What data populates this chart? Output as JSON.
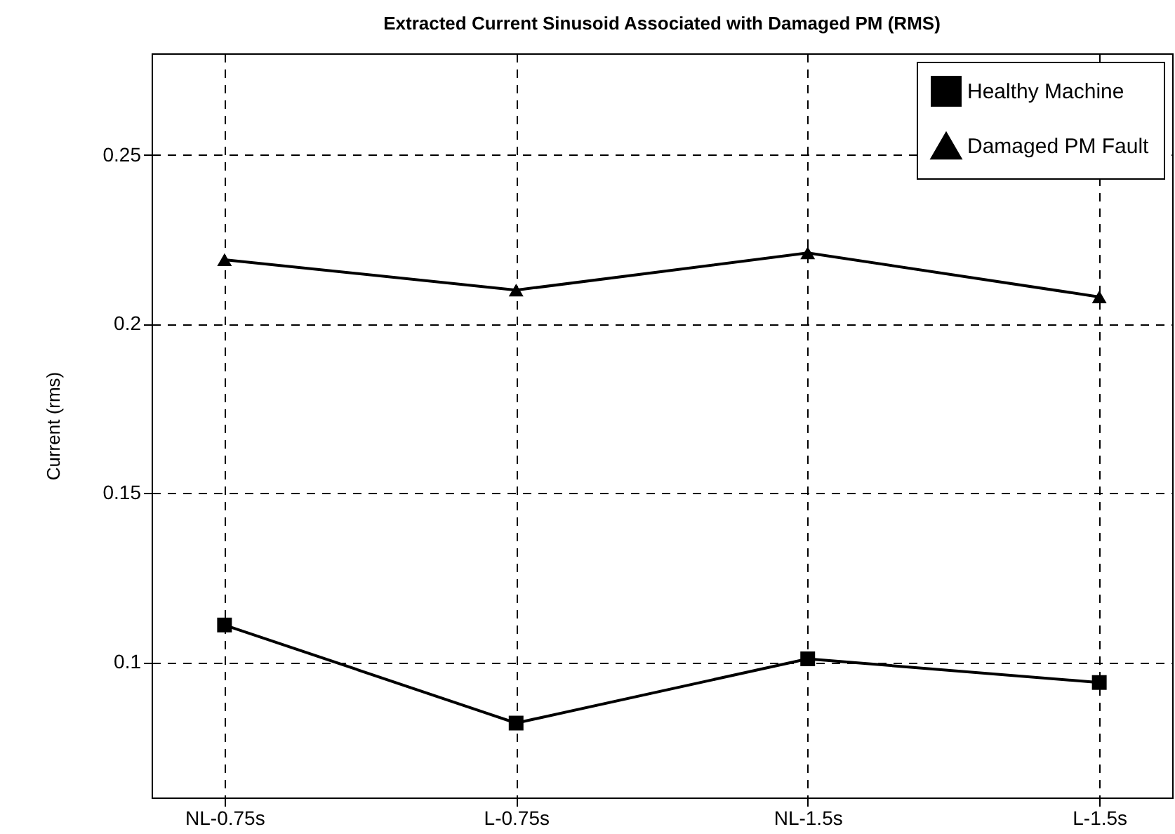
{
  "chart_data": {
    "type": "line",
    "title": "Extracted Current Sinusoid Associated with Damaged PM (RMS)",
    "ylabel": "Current (rms)",
    "categories": [
      "NL-0.75s",
      "L-0.75s",
      "NL-1.5s",
      "L-1.5s"
    ],
    "ylim": [
      0.06,
      0.28
    ],
    "yticks": [
      0.1,
      0.15,
      0.2,
      0.25
    ],
    "series": [
      {
        "name": "Healthy Machine",
        "color": "#000000",
        "marker": "square",
        "values": [
          0.111,
          0.082,
          0.101,
          0.094
        ]
      },
      {
        "name": "Damaged PM Fault",
        "color": "#000000",
        "marker": "triangle",
        "values": [
          0.219,
          0.21,
          0.221,
          0.208
        ]
      }
    ],
    "grid": true,
    "legend": "top right",
    "line_style": "solid"
  }
}
